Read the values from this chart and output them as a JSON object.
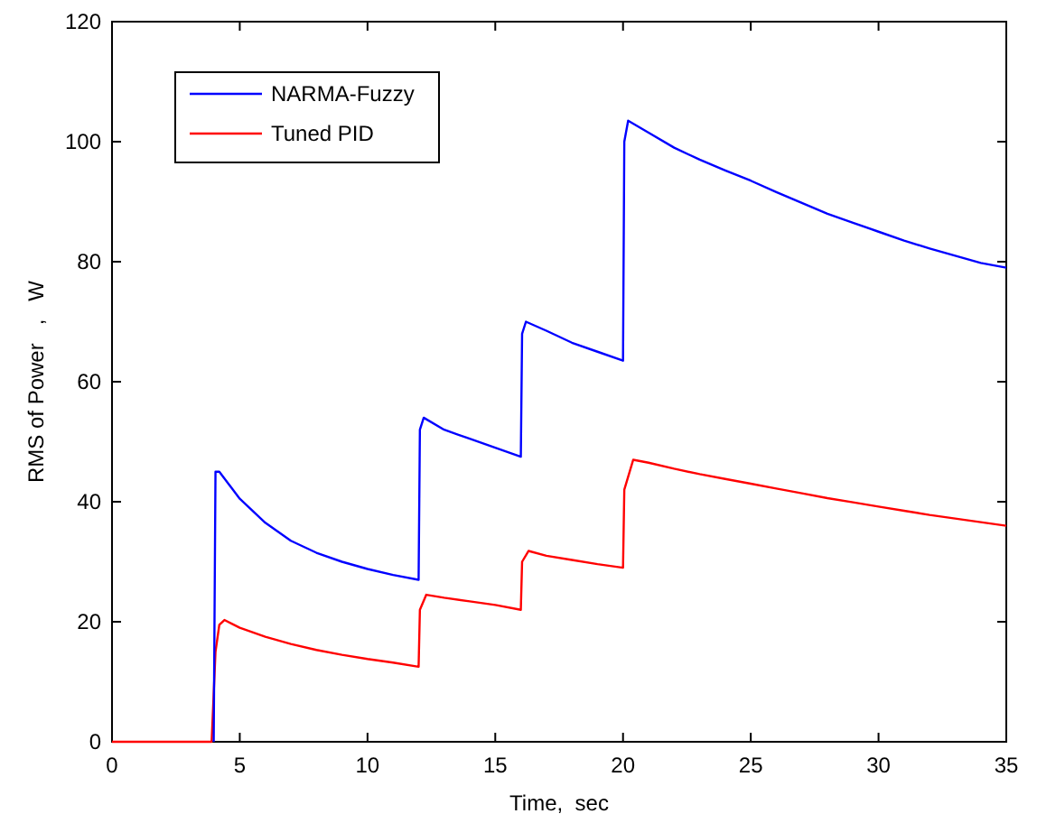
{
  "chart_data": {
    "type": "line",
    "xlabel": "Time,  sec",
    "ylabel": "RMS of Power   ,   W",
    "xlim": [
      0,
      35
    ],
    "ylim": [
      0,
      120
    ],
    "xticks": [
      0,
      5,
      10,
      15,
      20,
      25,
      30,
      35
    ],
    "yticks": [
      0,
      20,
      40,
      60,
      80,
      100,
      120
    ],
    "legend": "top left",
    "grid": false,
    "series": [
      {
        "name": "NARMA-Fuzzy",
        "color": "#0000ff",
        "x": [
          3.98,
          4.05,
          4.2,
          5,
          6,
          7,
          8,
          9,
          10,
          11,
          12,
          12.05,
          12.2,
          13,
          14,
          15,
          16,
          16.05,
          16.2,
          17,
          18,
          19,
          20,
          20.05,
          20.2,
          21,
          22,
          23,
          24,
          25,
          26,
          27,
          28,
          29,
          30,
          31,
          32,
          33,
          34,
          35
        ],
        "values": [
          0,
          45,
          45,
          40.5,
          36.5,
          33.5,
          31.5,
          30,
          28.8,
          27.8,
          27,
          52,
          54,
          52,
          50.5,
          49,
          47.5,
          68,
          70,
          68.5,
          66.5,
          65,
          63.5,
          100,
          103.5,
          101.5,
          99,
          97,
          95.2,
          93.5,
          91.6,
          89.8,
          88,
          86.5,
          85,
          83.5,
          82.2,
          81,
          79.8,
          79
        ]
      },
      {
        "name": "Tuned PID",
        "color": "#ff0000",
        "x": [
          0,
          3.9,
          4.05,
          4.2,
          4.4,
          5,
          6,
          7,
          8,
          9,
          10,
          11,
          12,
          12.05,
          12.3,
          13,
          14,
          15,
          16,
          16.05,
          16.3,
          17,
          18,
          19,
          20,
          20.05,
          20.4,
          21,
          22,
          23,
          24,
          25,
          26,
          27,
          28,
          29,
          30,
          31,
          32,
          33,
          34,
          35
        ],
        "values": [
          0,
          0,
          15,
          19.5,
          20.3,
          19,
          17.5,
          16.3,
          15.3,
          14.5,
          13.8,
          13.2,
          12.5,
          22,
          24.5,
          24,
          23.4,
          22.8,
          22,
          30,
          31.8,
          31,
          30.3,
          29.6,
          29,
          42,
          47,
          46.5,
          45.5,
          44.6,
          43.8,
          43,
          42.2,
          41.4,
          40.6,
          39.9,
          39.2,
          38.5,
          37.8,
          37.2,
          36.6,
          36
        ]
      }
    ]
  }
}
